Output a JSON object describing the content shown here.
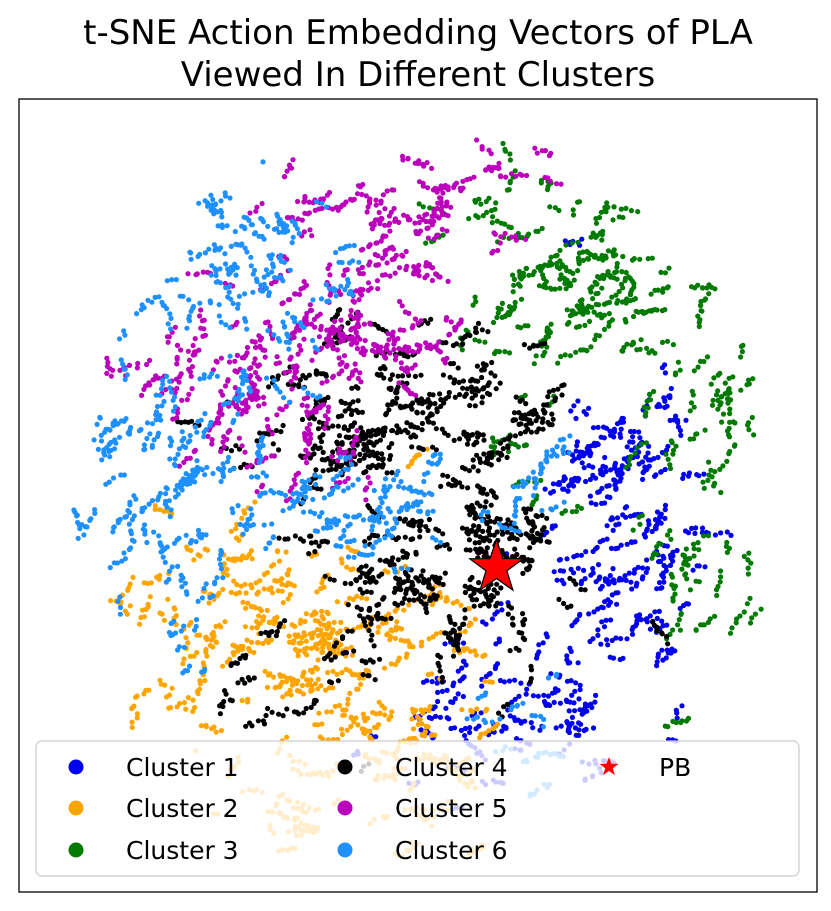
{
  "chart_data": {
    "type": "scatter",
    "title_lines": [
      "t-SNE Action Embedding Vectors of PLA",
      "Viewed In Different Clusters"
    ],
    "xlabel": "",
    "ylabel": "",
    "x_range": [
      -1,
      1
    ],
    "y_range": [
      -1,
      1
    ],
    "axis_ticks": false,
    "grid": false,
    "legend": {
      "placement": "lower-center",
      "columns": 3,
      "frame": true,
      "alpha": 0.8
    },
    "series": [
      {
        "name": "Cluster 1",
        "color": "#0000ee",
        "marker": "circle",
        "blobs": [
          {
            "cx": 0.52,
            "cy": -0.1,
            "sx": 0.13,
            "sy": 0.24,
            "n": 400,
            "dir": 0.6
          },
          {
            "cx": 0.28,
            "cy": -0.5,
            "sx": 0.12,
            "sy": 0.12,
            "n": 160,
            "dir": 0.3
          },
          {
            "cx": 0.05,
            "cy": -0.62,
            "sx": 0.1,
            "sy": 0.08,
            "n": 80,
            "dir": 0.0
          },
          {
            "cx": 0.55,
            "cy": 0.15,
            "sx": 0.08,
            "sy": 0.1,
            "n": 80,
            "dir": 1.2
          }
        ]
      },
      {
        "name": "Cluster 2",
        "color": "#ffa500",
        "marker": "circle",
        "blobs": [
          {
            "cx": -0.32,
            "cy": -0.38,
            "sx": 0.24,
            "sy": 0.17,
            "n": 600,
            "dir": 0.3
          },
          {
            "cx": -0.05,
            "cy": -0.6,
            "sx": 0.12,
            "sy": 0.09,
            "n": 100,
            "dir": -0.2
          },
          {
            "cx": -0.6,
            "cy": -0.28,
            "sx": 0.1,
            "sy": 0.15,
            "n": 80,
            "dir": 1.2
          },
          {
            "cx": -0.2,
            "cy": -0.83,
            "sx": 0.2,
            "sy": 0.08,
            "n": 150,
            "dir": 0.0
          }
        ]
      },
      {
        "name": "Cluster 3",
        "color": "#007a00",
        "marker": "circle",
        "blobs": [
          {
            "cx": 0.45,
            "cy": 0.55,
            "sx": 0.16,
            "sy": 0.14,
            "n": 350,
            "dir": 0.5
          },
          {
            "cx": 0.78,
            "cy": 0.12,
            "sx": 0.1,
            "sy": 0.2,
            "n": 170,
            "dir": 1.3
          },
          {
            "cx": 0.28,
            "cy": 0.72,
            "sx": 0.12,
            "sy": 0.1,
            "n": 110,
            "dir": -0.3
          },
          {
            "cx": 0.7,
            "cy": -0.25,
            "sx": 0.07,
            "sy": 0.12,
            "n": 50,
            "dir": 1.0
          },
          {
            "cx": 0.2,
            "cy": 0.08,
            "sx": 0.07,
            "sy": 0.08,
            "n": 35,
            "dir": 0.8
          }
        ]
      },
      {
        "name": "Cluster 4",
        "color": "#000000",
        "marker": "circle",
        "blobs": [
          {
            "cx": 0.0,
            "cy": 0.25,
            "sx": 0.22,
            "sy": 0.13,
            "n": 500,
            "dir": 0.0
          },
          {
            "cx": 0.1,
            "cy": -0.1,
            "sx": 0.15,
            "sy": 0.12,
            "n": 300,
            "dir": -0.6
          },
          {
            "cx": -0.3,
            "cy": 0.12,
            "sx": 0.1,
            "sy": 0.08,
            "n": 100,
            "dir": 0.5
          },
          {
            "cx": -0.15,
            "cy": -0.2,
            "sx": 0.12,
            "sy": 0.08,
            "n": 150,
            "dir": 0.2
          },
          {
            "cx": 0.2,
            "cy": -0.35,
            "sx": 0.08,
            "sy": 0.1,
            "n": 70,
            "dir": 1.1
          },
          {
            "cx": -0.38,
            "cy": -0.5,
            "sx": 0.12,
            "sy": 0.1,
            "n": 60,
            "dir": 0.7
          }
        ]
      },
      {
        "name": "Cluster 5",
        "color": "#bb00bb",
        "marker": "circle",
        "blobs": [
          {
            "cx": -0.38,
            "cy": 0.25,
            "sx": 0.12,
            "sy": 0.14,
            "n": 350,
            "dir": 1.1
          },
          {
            "cx": -0.18,
            "cy": 0.68,
            "sx": 0.2,
            "sy": 0.12,
            "n": 300,
            "dir": 0.3
          },
          {
            "cx": -0.08,
            "cy": 0.42,
            "sx": 0.1,
            "sy": 0.07,
            "n": 120,
            "dir": -0.2
          },
          {
            "cx": -0.75,
            "cy": 0.35,
            "sx": 0.06,
            "sy": 0.06,
            "n": 50,
            "dir": 0.9
          },
          {
            "cx": 0.1,
            "cy": 0.83,
            "sx": 0.15,
            "sy": 0.05,
            "n": 70,
            "dir": 0.0
          }
        ]
      },
      {
        "name": "Cluster 6",
        "color": "#1e90ff",
        "marker": "circle",
        "blobs": [
          {
            "cx": -0.72,
            "cy": 0.05,
            "sx": 0.13,
            "sy": 0.24,
            "n": 400,
            "dir": 1.2
          },
          {
            "cx": -0.45,
            "cy": 0.6,
            "sx": 0.15,
            "sy": 0.12,
            "n": 250,
            "dir": -0.5
          },
          {
            "cx": -0.3,
            "cy": -0.05,
            "sx": 0.12,
            "sy": 0.08,
            "n": 150,
            "dir": 0.4
          },
          {
            "cx": 0.0,
            "cy": -0.05,
            "sx": 0.1,
            "sy": 0.08,
            "n": 70,
            "dir": 0.2
          },
          {
            "cx": 0.3,
            "cy": 0.1,
            "sx": 0.08,
            "sy": 0.08,
            "n": 50,
            "dir": 0.9
          },
          {
            "cx": 0.2,
            "cy": -0.6,
            "sx": 0.12,
            "sy": 0.08,
            "n": 50,
            "dir": -0.1
          }
        ]
      }
    ],
    "highlight": {
      "name": "PB",
      "color": "#ff0000",
      "marker": "star",
      "x": 0.215,
      "y": -0.17
    }
  }
}
